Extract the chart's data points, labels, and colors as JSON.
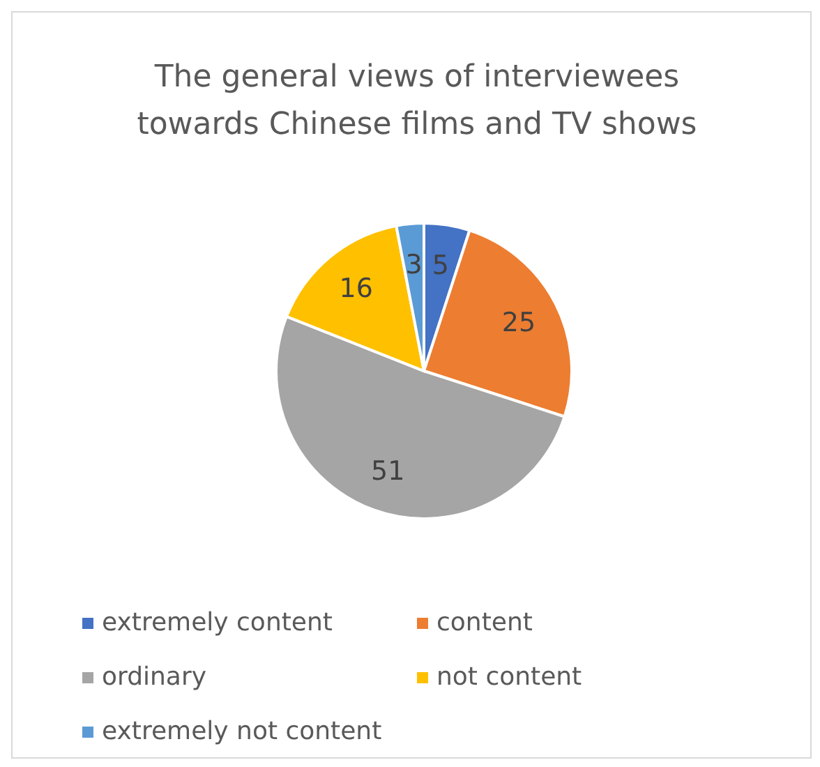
{
  "chart_data": {
    "type": "pie",
    "title": "The general views of interviewees towards Chinese films and TV shows",
    "categories": [
      "extremely content",
      "content",
      "ordinary",
      "not content",
      "extremely not content"
    ],
    "values": [
      5,
      25,
      51,
      16,
      3
    ],
    "colors": [
      "#4472c4",
      "#ed7d31",
      "#a5a5a5",
      "#ffc000",
      "#5b9bd5"
    ],
    "data_labels": true,
    "legend": "bottom"
  }
}
